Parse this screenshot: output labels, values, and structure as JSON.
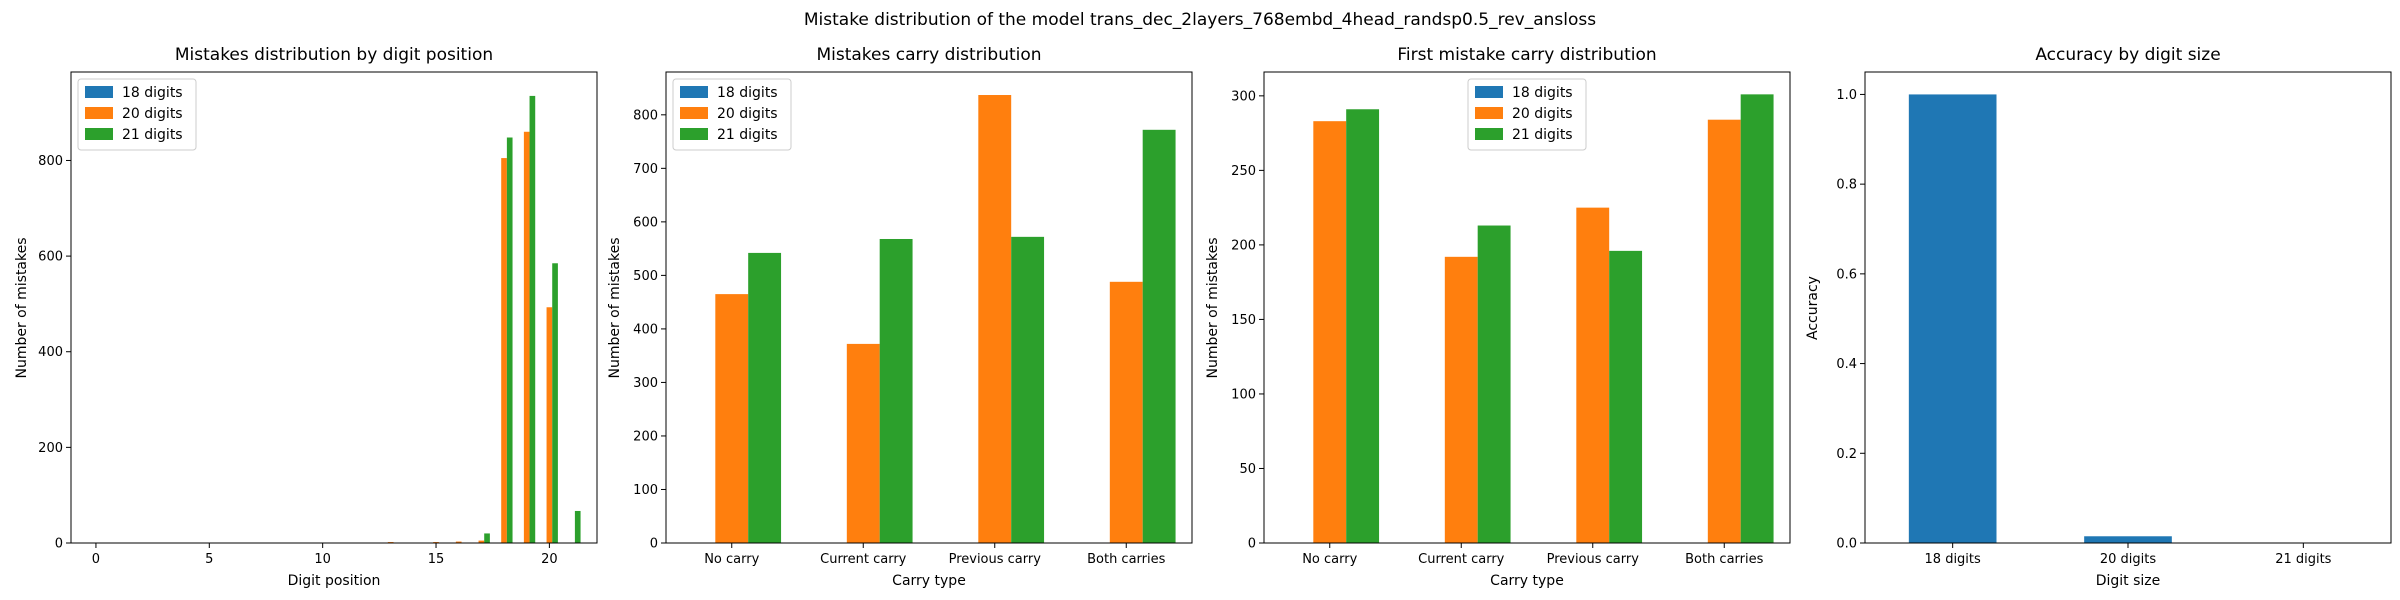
{
  "figure": {
    "suptitle": "Mistake distribution of the model trans_dec_2layers_768embd_4head_randsp0.5_rev_ansloss"
  },
  "colors": {
    "18 digits": "#1f77b4",
    "20 digits": "#ff7f0e",
    "21 digits": "#2ca02c"
  },
  "chart_data": [
    {
      "type": "bar",
      "title": "Mistakes distribution by digit position",
      "xlabel": "Digit position",
      "ylabel": "Number of mistakes",
      "xlim": [
        -1.1,
        22.1
      ],
      "ylim": [
        0,
        985
      ],
      "xticks": [
        0,
        5,
        10,
        15,
        20
      ],
      "yticks": [
        0,
        200,
        400,
        600,
        800
      ],
      "legend_loc": "upper left",
      "x": [
        0,
        1,
        2,
        3,
        4,
        5,
        6,
        7,
        8,
        9,
        10,
        11,
        12,
        13,
        14,
        15,
        16,
        17,
        18,
        19,
        20,
        21
      ],
      "series": [
        {
          "name": "18 digits",
          "values": [
            0,
            0,
            0,
            0,
            0,
            0,
            0,
            0,
            0,
            0,
            0,
            0,
            0,
            0,
            0,
            0,
            0,
            0,
            0,
            0,
            0,
            0
          ]
        },
        {
          "name": "20 digits",
          "values": [
            0,
            0,
            0,
            0,
            0,
            0,
            0,
            0,
            0,
            0,
            0,
            0,
            0,
            2,
            1,
            2,
            3,
            5,
            805,
            860,
            493,
            0
          ]
        },
        {
          "name": "21 digits",
          "values": [
            0,
            0,
            0,
            0,
            0,
            0,
            0,
            0,
            0,
            0,
            0,
            0,
            0,
            0,
            0,
            0,
            0,
            20,
            848,
            935,
            585,
            67
          ]
        }
      ]
    },
    {
      "type": "bar",
      "title": "Mistakes carry distribution",
      "xlabel": "Carry type",
      "ylabel": "Number of mistakes",
      "categories": [
        "No carry",
        "Current carry",
        "Previous carry",
        "Both carries"
      ],
      "ylim": [
        0,
        880
      ],
      "yticks": [
        0,
        100,
        200,
        300,
        400,
        500,
        600,
        700,
        800
      ],
      "legend_loc": "upper left",
      "series": [
        {
          "name": "18 digits",
          "values": [
            0,
            0,
            0,
            0
          ]
        },
        {
          "name": "20 digits",
          "values": [
            465,
            372,
            837,
            488
          ]
        },
        {
          "name": "21 digits",
          "values": [
            542,
            568,
            572,
            772
          ]
        }
      ]
    },
    {
      "type": "bar",
      "title": "First mistake carry distribution",
      "xlabel": "Carry type",
      "ylabel": "Number of mistakes",
      "categories": [
        "No carry",
        "Current carry",
        "Previous carry",
        "Both carries"
      ],
      "ylim": [
        0,
        316
      ],
      "yticks": [
        0,
        50,
        100,
        150,
        200,
        250,
        300
      ],
      "legend_loc": "upper center",
      "series": [
        {
          "name": "18 digits",
          "values": [
            0,
            0,
            0,
            0
          ]
        },
        {
          "name": "20 digits",
          "values": [
            283,
            192,
            225,
            284
          ]
        },
        {
          "name": "21 digits",
          "values": [
            291,
            213,
            196,
            301
          ]
        }
      ]
    },
    {
      "type": "bar",
      "title": "Accuracy by digit size",
      "xlabel": "Digit size",
      "ylabel": "Accuracy",
      "categories": [
        "18 digits",
        "20 digits",
        "21 digits"
      ],
      "values": [
        1.0,
        0.015,
        0.0
      ],
      "ylim": [
        0,
        1.05
      ],
      "yticks": [
        0.0,
        0.2,
        0.4,
        0.6,
        0.8,
        1.0
      ]
    }
  ]
}
